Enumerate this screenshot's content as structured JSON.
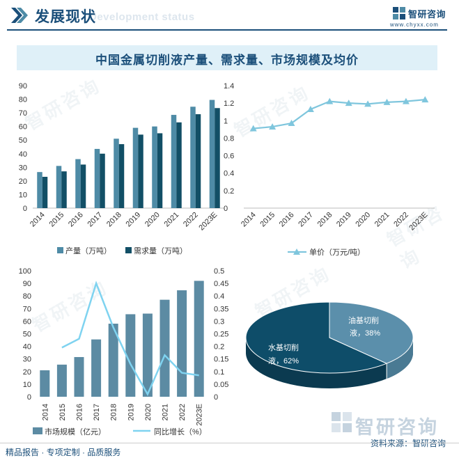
{
  "header": {
    "title": "发展现状",
    "subtitle": "Development status",
    "brand_name": "智研咨询",
    "brand_url": "www.chyxx.com"
  },
  "chart_title": "中国金属切削液产量、需求量、市场规模及均价",
  "watermark": "智研咨询",
  "footer": {
    "left": "精品报告 · 专项定制 · 品质服务",
    "right": "资料来源：智研咨询"
  },
  "colors": {
    "brand": "#1b4f7a",
    "production": "#4e8ba6",
    "demand": "#124f66",
    "price_line": "#7fc6dd",
    "market_bar": "#5c8ba3",
    "growth_line": "#7fd3f0",
    "pie_water": "#0e4d69",
    "pie_oil": "#5b8fab"
  },
  "chart_data": [
    {
      "type": "bar",
      "categories": [
        "2014",
        "2015",
        "2016",
        "2017",
        "2018",
        "2019",
        "2020",
        "2021",
        "2022",
        "2023E"
      ],
      "series": [
        {
          "name": "产量（万吨）",
          "values": [
            26.5,
            31,
            36,
            43.5,
            51,
            59,
            60,
            68.5,
            74.5,
            79.5
          ]
        },
        {
          "name": "需求量（万吨）",
          "values": [
            23,
            27,
            32,
            40,
            47,
            54,
            55,
            63,
            69,
            73.5
          ]
        }
      ],
      "ylim": [
        0,
        90
      ],
      "yticks": [
        "0",
        "10",
        "20",
        "30",
        "40",
        "50",
        "60",
        "70",
        "80",
        "90"
      ],
      "legend": "bottom"
    },
    {
      "type": "line",
      "categories": [
        "2014",
        "2015",
        "2016",
        "2017",
        "2018",
        "2019",
        "2020",
        "2021",
        "2022",
        "2023E"
      ],
      "series": [
        {
          "name": "单价（万元/吨）",
          "values": [
            0.91,
            0.93,
            0.97,
            1.13,
            1.22,
            1.2,
            1.19,
            1.21,
            1.22,
            1.24
          ]
        }
      ],
      "ylim": [
        0,
        1.4
      ],
      "yticks": [
        "0",
        "0.2",
        "0.4",
        "0.6",
        "0.8",
        "1",
        "1.2",
        "1.4"
      ],
      "legend": "bottom"
    },
    {
      "type": "bar",
      "categories": [
        "2014",
        "2015",
        "2016",
        "2017",
        "2018",
        "2019",
        "2020",
        "2021",
        "2022",
        "2023E"
      ],
      "series": [
        {
          "name": "市场规模（亿元）",
          "values": [
            21,
            25.5,
            31.5,
            45.5,
            58,
            65.5,
            66,
            77,
            84.5,
            92
          ],
          "axis": "left",
          "kind": "bar"
        },
        {
          "name": "同比增长（%）",
          "values": [
            null,
            0.195,
            0.23,
            0.45,
            0.275,
            0.13,
            0.01,
            0.165,
            0.095,
            0.085
          ],
          "axis": "right",
          "kind": "line"
        }
      ],
      "ylim": [
        0,
        100
      ],
      "y2lim": [
        0,
        0.5
      ],
      "yticks": [
        "0",
        "10",
        "20",
        "30",
        "40",
        "50",
        "60",
        "70",
        "80",
        "90",
        "100"
      ],
      "y2ticks": [
        "0",
        "0.05",
        "0.1",
        "0.15",
        "0.2",
        "0.25",
        "0.3",
        "0.35",
        "0.4",
        "0.45",
        "0.5"
      ],
      "legend": "bottom"
    },
    {
      "type": "pie",
      "slices": [
        {
          "label": "水基切削液",
          "value": 62,
          "text": "水基切削液，62%"
        },
        {
          "label": "油基切削液",
          "value": 38,
          "text": "油基切削液，38%"
        }
      ]
    }
  ]
}
